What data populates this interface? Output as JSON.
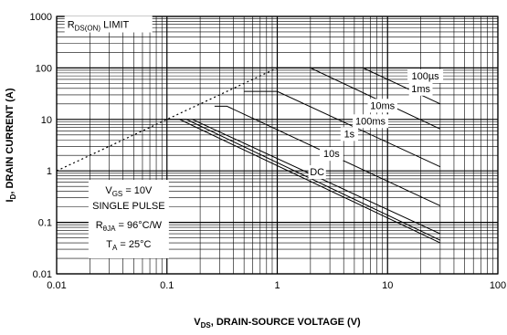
{
  "chart_data": {
    "type": "line",
    "x_scale": "log",
    "y_scale": "log",
    "xlim": [
      0.01,
      100
    ],
    "ylim": [
      0.01,
      1000
    ],
    "grid": true,
    "x_ticks": [
      "0.01",
      "0.1",
      "1",
      "10",
      "100"
    ],
    "y_ticks": [
      "1000",
      "100",
      "10",
      "1",
      "0.1",
      "0.01"
    ],
    "xlabel": {
      "main": "V",
      "sub": "DS",
      "rest": ", DRAIN-SOURCE VOLTAGE (V)"
    },
    "ylabel": {
      "main": "I",
      "sub": "D",
      "rest": ", DRAIN CURRENT (A)"
    },
    "limit_label": {
      "main": "R",
      "sub": "DS(ON)",
      "rest": " LIMIT"
    },
    "limit_line": {
      "style": "dotted",
      "points": [
        [
          0.01,
          1.0
        ],
        [
          1.0,
          100
        ]
      ]
    },
    "series": [
      {
        "name": "100µs",
        "points": [
          [
            1.0,
            100
          ],
          [
            2.0,
            100
          ],
          [
            30,
            6.5
          ]
        ]
      },
      {
        "name": "1ms",
        "points": [
          [
            0.85,
            100
          ],
          [
            6.0,
            100
          ],
          [
            30,
            20
          ]
        ]
      },
      {
        "name": "10ms",
        "points": [
          [
            0.5,
            35
          ],
          [
            1.0,
            35
          ],
          [
            30,
            1.2
          ]
        ]
      },
      {
        "name": "100ms",
        "points": [
          [
            0.27,
            18
          ],
          [
            0.35,
            18
          ],
          [
            30,
            0.21
          ]
        ]
      },
      {
        "name": "1s",
        "points": [
          [
            0.17,
            10
          ],
          [
            0.17,
            10
          ],
          [
            30,
            0.06
          ]
        ]
      },
      {
        "name": "10s",
        "points": [
          [
            0.13,
            10
          ],
          [
            0.15,
            10
          ],
          [
            30,
            0.045
          ]
        ]
      },
      {
        "name": "DC",
        "points": [
          [
            0.1,
            10
          ],
          [
            0.13,
            10
          ],
          [
            30,
            0.04
          ]
        ]
      }
    ],
    "curve_labels": [
      {
        "text": "100µs",
        "at": [
          22,
          60
        ]
      },
      {
        "text": "1ms",
        "at": [
          20,
          34
        ]
      },
      {
        "text": "10ms",
        "at": [
          9,
          16
        ]
      },
      {
        "text": "100ms",
        "at": [
          7,
          8
        ]
      },
      {
        "text": "1s",
        "at": [
          4.5,
          4.5
        ]
      },
      {
        "text": "10s",
        "at": [
          3.1,
          1.85
        ]
      },
      {
        "text": "DC",
        "at": [
          2.3,
          0.82
        ]
      }
    ],
    "conditions": {
      "vgs": {
        "main": "V",
        "sub": "GS",
        "rest": " = 10V"
      },
      "pulse": {
        "main": "SINGLE PULSE",
        "sub": "",
        "rest": ""
      },
      "rtheta": {
        "main": "R",
        "sub": "θJA",
        "rest": " = 96°C/W"
      },
      "ta": {
        "main": "T",
        "sub": "A",
        "rest": " = 25°C"
      }
    }
  }
}
